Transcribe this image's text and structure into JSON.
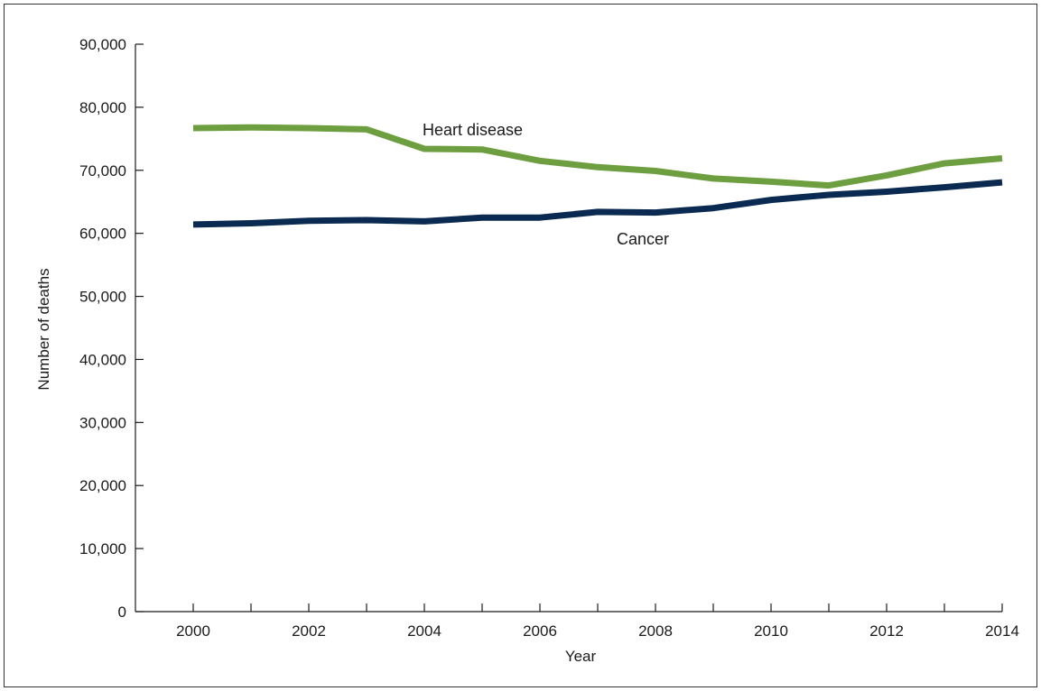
{
  "chart_data": {
    "type": "line",
    "xlabel": "Year",
    "ylabel": "Number of deaths",
    "xlim": [
      1999,
      2014
    ],
    "ylim": [
      0,
      90000
    ],
    "x_ticks": [
      2000,
      2002,
      2004,
      2006,
      2008,
      2010,
      2012,
      2014
    ],
    "x_tick_labels": [
      "2000",
      "2002",
      "2004",
      "2006",
      "2008",
      "2010",
      "2012",
      "2014"
    ],
    "y_ticks": [
      0,
      10000,
      20000,
      30000,
      40000,
      50000,
      60000,
      70000,
      80000,
      90000
    ],
    "y_tick_labels": [
      "0",
      "10,000",
      "20,000",
      "30,000",
      "40,000",
      "50,000",
      "60,000",
      "70,000",
      "80,000",
      "90,000"
    ],
    "grid": false,
    "legend": "none (series labeled inline)",
    "x": [
      2000,
      2001,
      2002,
      2003,
      2004,
      2005,
      2006,
      2007,
      2008,
      2009,
      2010,
      2011,
      2012,
      2013,
      2014
    ],
    "series": [
      {
        "name": "Heart disease",
        "color": "#6d9e3f",
        "values": [
          76700,
          76800,
          76700,
          76500,
          73400,
          73300,
          71500,
          70500,
          69900,
          68700,
          68200,
          67600,
          69200,
          71100,
          71900
        ]
      },
      {
        "name": "Cancer",
        "color": "#0a2a52",
        "values": [
          61400,
          61600,
          62000,
          62100,
          61900,
          62500,
          62500,
          63400,
          63300,
          64000,
          65300,
          66100,
          66600,
          67300,
          68100
        ]
      }
    ]
  }
}
